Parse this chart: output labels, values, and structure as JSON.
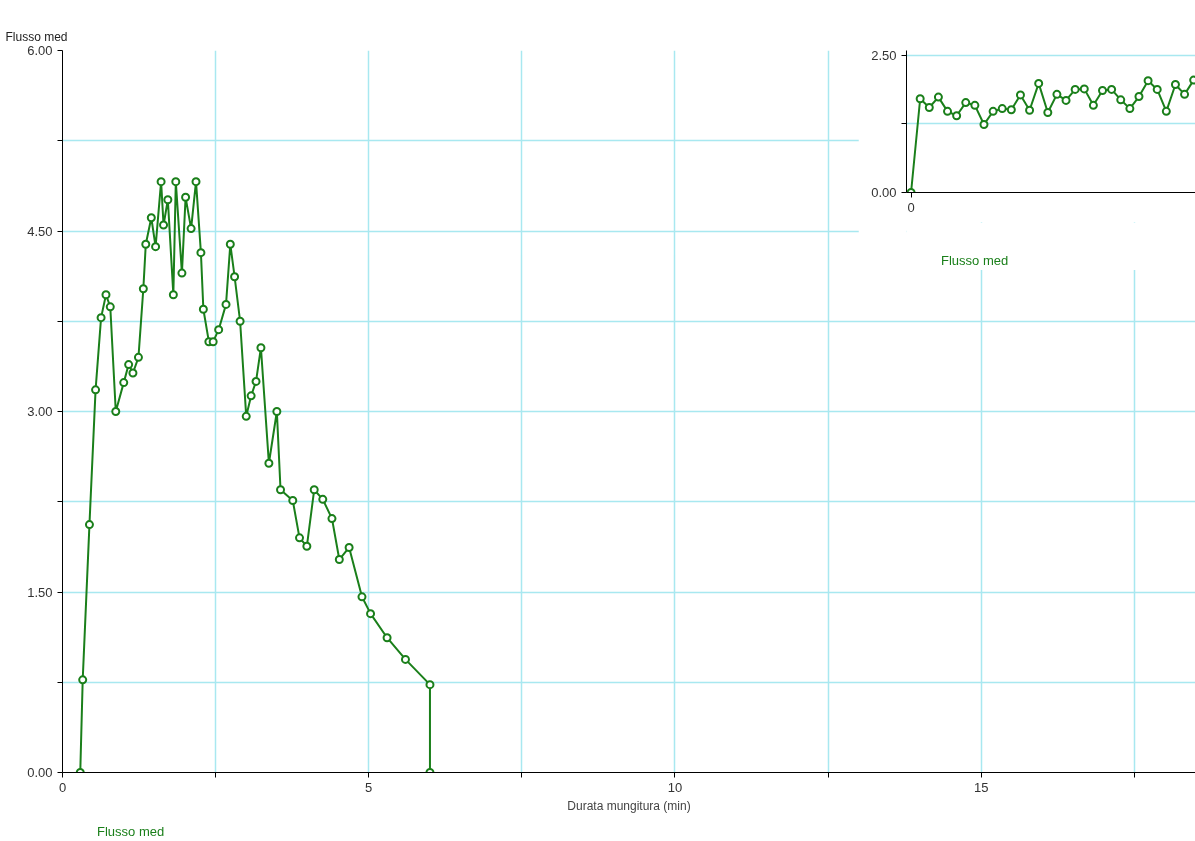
{
  "chart_data": [
    {
      "type": "line",
      "xlabel": "Durata mungitura (min)",
      "ylabel": "Flusso med",
      "x": [
        0.29,
        0.33,
        0.44,
        0.54,
        0.63,
        0.71,
        0.78,
        0.87,
        1.0,
        1.08,
        1.15,
        1.24,
        1.32,
        1.36,
        1.45,
        1.52,
        1.61,
        1.65,
        1.72,
        1.81,
        1.85,
        1.95,
        2.01,
        2.1,
        2.18,
        2.26,
        2.3,
        2.39,
        2.46,
        2.55,
        2.67,
        2.74,
        2.81,
        2.9,
        3.0,
        3.08,
        3.16,
        3.24,
        3.37,
        3.5,
        3.56,
        3.76,
        3.87,
        3.99,
        4.11,
        4.25,
        4.4,
        4.52,
        4.68,
        4.89,
        5.03,
        5.3,
        5.6,
        6.0,
        6.0
      ],
      "series": [
        {
          "name": "Flusso med",
          "color": "#1a7f1a",
          "values": [
            0,
            0.77,
            2.06,
            3.18,
            3.78,
            3.97,
            3.87,
            3.0,
            3.24,
            3.39,
            3.32,
            3.45,
            4.02,
            4.39,
            4.61,
            4.37,
            4.91,
            4.55,
            4.76,
            3.97,
            4.91,
            4.15,
            4.78,
            4.52,
            4.91,
            4.32,
            3.85,
            3.58,
            3.58,
            3.68,
            3.89,
            4.39,
            4.12,
            3.75,
            2.96,
            3.13,
            3.25,
            3.53,
            2.57,
            3.0,
            2.35,
            2.26,
            1.95,
            1.88,
            2.35,
            2.27,
            2.11,
            1.77,
            1.87,
            1.46,
            1.32,
            1.12,
            0.94,
            0.73,
            0
          ]
        }
      ],
      "xlim": [
        0,
        18.5
      ],
      "xticks": [
        0,
        {
          "value": 2.5,
          "label": null
        },
        5,
        {
          "value": 7.5,
          "label": null
        },
        10,
        {
          "value": 12.5,
          "label": null
        },
        15,
        {
          "value": 17.5,
          "label": null
        }
      ],
      "ylim": [
        0,
        6
      ],
      "yticks": [
        {
          "value": 0,
          "label": "0.00"
        },
        {
          "value": 0.75,
          "label": null
        },
        {
          "value": 1.5,
          "label": "1.50"
        },
        {
          "value": 2.25,
          "label": null
        },
        {
          "value": 3,
          "label": "3.00"
        },
        {
          "value": 3.75,
          "label": null
        },
        {
          "value": 4.5,
          "label": "4.50"
        },
        {
          "value": 5.25,
          "label": null
        },
        {
          "value": 6,
          "label": "6.00"
        }
      ],
      "grid": true,
      "legend": "bottom left",
      "marker": "circle"
    },
    {
      "type": "line",
      "categories": [
        "0",
        null,
        null,
        null,
        null,
        null,
        null,
        null,
        null,
        null,
        null,
        null,
        null,
        null,
        null,
        null,
        null,
        null,
        null,
        null,
        null,
        null,
        null,
        null,
        null,
        null,
        null,
        null,
        null,
        null,
        null,
        null
      ],
      "series": [
        {
          "name": "Flusso med",
          "color": "#1a7f1a",
          "values": [
            0,
            1.71,
            1.55,
            1.74,
            1.48,
            1.4,
            1.64,
            1.59,
            1.24,
            1.48,
            1.53,
            1.51,
            1.78,
            1.5,
            1.99,
            1.46,
            1.79,
            1.68,
            1.88,
            1.89,
            1.59,
            1.86,
            1.88,
            1.69,
            1.53,
            1.75,
            2.04,
            1.88,
            1.48,
            1.97,
            1.79,
            2.05
          ]
        }
      ],
      "ylim": [
        0,
        2.59
      ],
      "yticks": [
        {
          "value": 0,
          "label": "0.00"
        },
        {
          "value": 1.25,
          "label": null
        },
        {
          "value": 2.5,
          "label": "2.50"
        }
      ],
      "grid": "y",
      "legend": "bottom left",
      "marker": "circle"
    }
  ]
}
